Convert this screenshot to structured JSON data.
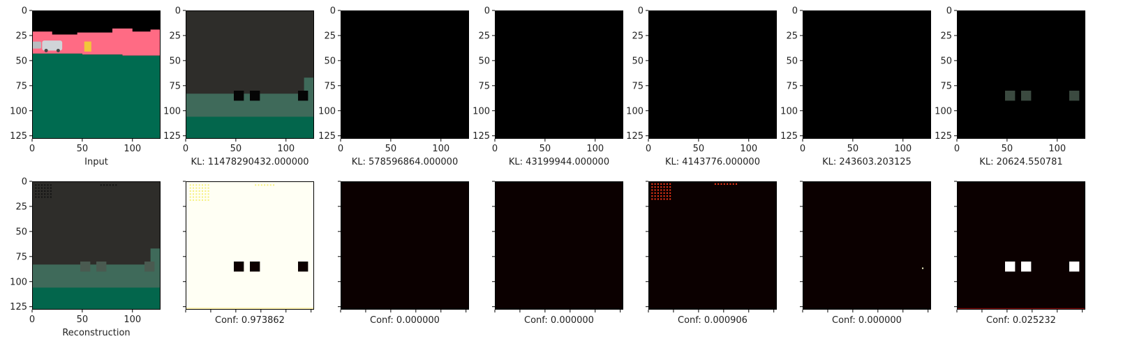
{
  "chart_data": [
    {
      "type": "image",
      "panel": "input",
      "caption": "Input",
      "xlim": [
        0,
        128
      ],
      "ylim": [
        128,
        0
      ],
      "xticks": [
        0,
        50,
        100
      ],
      "yticks": [
        0,
        25,
        50,
        75,
        100,
        125
      ],
      "content": "segmentation-map",
      "colors": {
        "sky": "#000000",
        "buildings": "#ff6b84",
        "road": "#006b50",
        "car": "#d0d4d8",
        "sign": "#f2c63a"
      }
    },
    {
      "type": "image",
      "panel": "mask-1",
      "caption": "KL: 11478290432.000000",
      "xlim": [
        0,
        128
      ],
      "ylim": [
        128,
        0
      ],
      "xticks": [
        0,
        50,
        100
      ],
      "yticks": [
        0,
        25,
        50,
        75,
        100,
        125
      ],
      "content": "reconstruction",
      "colors": {
        "top": "#2e2d2a",
        "band": "#3f6a5a",
        "bottom": "#03664c"
      }
    },
    {
      "type": "image",
      "panel": "mask-2",
      "caption": "KL: 578596864.000000",
      "xlim": [
        0,
        128
      ],
      "ylim": [
        128,
        0
      ],
      "xticks": [
        0,
        50,
        100
      ],
      "yticks": [
        0,
        25,
        50,
        75,
        100,
        125
      ],
      "content": "black",
      "colors": {
        "fill": "#000000"
      }
    },
    {
      "type": "image",
      "panel": "mask-3",
      "caption": "KL: 43199944.000000",
      "xlim": [
        0,
        128
      ],
      "ylim": [
        128,
        0
      ],
      "xticks": [
        0,
        50,
        100
      ],
      "yticks": [
        0,
        25,
        50,
        75,
        100,
        125
      ],
      "content": "black",
      "colors": {
        "fill": "#000000"
      }
    },
    {
      "type": "image",
      "panel": "mask-4",
      "caption": "KL: 4143776.000000",
      "xlim": [
        0,
        128
      ],
      "ylim": [
        128,
        0
      ],
      "xticks": [
        0,
        50,
        100
      ],
      "yticks": [
        0,
        25,
        50,
        75,
        100,
        125
      ],
      "content": "black",
      "colors": {
        "fill": "#000000"
      }
    },
    {
      "type": "image",
      "panel": "mask-5",
      "caption": "KL: 243603.203125",
      "xlim": [
        0,
        128
      ],
      "ylim": [
        128,
        0
      ],
      "xticks": [
        0,
        50,
        100
      ],
      "yticks": [
        0,
        25,
        50,
        75,
        100,
        125
      ],
      "content": "black",
      "colors": {
        "fill": "#000000"
      }
    },
    {
      "type": "image",
      "panel": "mask-6",
      "caption": "KL: 20624.550781",
      "xlim": [
        0,
        128
      ],
      "ylim": [
        128,
        0
      ],
      "xticks": [
        0,
        50,
        100
      ],
      "yticks": [
        0,
        25,
        50,
        75,
        100,
        125
      ],
      "content": "black-with-squares",
      "colors": {
        "fill": "#000000",
        "squares": "#3b4a40"
      }
    },
    {
      "type": "image",
      "panel": "reconstruction",
      "caption": "Reconstruction",
      "xlim": [
        0,
        128
      ],
      "ylim": [
        128,
        0
      ],
      "xticks": [
        0,
        50,
        100
      ],
      "yticks": [
        0,
        25,
        50,
        75,
        100,
        125
      ],
      "content": "reconstruction",
      "colors": {
        "top": "#2e2d2a",
        "band": "#3f6a5a",
        "bottom": "#03664c"
      }
    },
    {
      "type": "heatmap",
      "panel": "conf-1",
      "caption": "Conf: 0.973862",
      "value": 0.973862,
      "xticks_labeled": false,
      "yticks_labeled": false,
      "colormap": "hot",
      "colors": {
        "fill": "#fffff4",
        "squares": "#0d0000"
      }
    },
    {
      "type": "heatmap",
      "panel": "conf-2",
      "caption": "Conf: 0.000000",
      "value": 0.0,
      "xticks_labeled": false,
      "yticks_labeled": false,
      "colormap": "hot",
      "colors": {
        "fill": "#0b0000"
      }
    },
    {
      "type": "heatmap",
      "panel": "conf-3",
      "caption": "Conf: 0.000000",
      "value": 0.0,
      "xticks_labeled": false,
      "yticks_labeled": false,
      "colormap": "hot",
      "colors": {
        "fill": "#0b0000"
      }
    },
    {
      "type": "heatmap",
      "panel": "conf-4",
      "caption": "Conf: 0.000906",
      "value": 0.000906,
      "xticks_labeled": false,
      "yticks_labeled": false,
      "colormap": "hot",
      "colors": {
        "fill": "#0b0000",
        "dots": "#ff3a1a"
      }
    },
    {
      "type": "heatmap",
      "panel": "conf-5",
      "caption": "Conf: 0.000000",
      "value": 0.0,
      "xticks_labeled": false,
      "yticks_labeled": false,
      "colormap": "hot",
      "colors": {
        "fill": "#0b0000",
        "dots": "#ffffd0"
      }
    },
    {
      "type": "heatmap",
      "panel": "conf-6",
      "caption": "Conf: 0.025232",
      "value": 0.025232,
      "xticks_labeled": false,
      "yticks_labeled": false,
      "colormap": "hot",
      "colors": {
        "fill": "#0b0000",
        "squares": "#ffffff"
      }
    }
  ]
}
